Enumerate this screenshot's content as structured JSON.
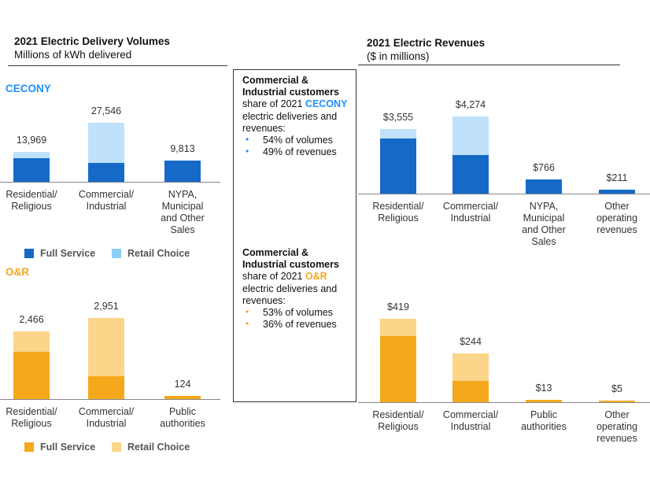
{
  "left_header": {
    "title": "2021 Electric Delivery Volumes",
    "subtitle": "Millions of kWh delivered"
  },
  "right_header": {
    "title": "2021 Electric Revenues",
    "subtitle": "($ in millions)"
  },
  "companies": {
    "cecony": "CECONY",
    "or": "O&R"
  },
  "colors": {
    "cecony_full": "#1569c7",
    "cecony_retail": "#bfe1fb",
    "cecony_retail_legend": "#8ecdf8",
    "cecony_label": "#1e90ff",
    "or_full": "#f5a81c",
    "or_retail": "#fbd58a",
    "or_label": "#f5a623"
  },
  "notes": {
    "cecony": {
      "line1": "Commercial &",
      "line2": "Industrial customers",
      "line3_prefix": "share of 2021 ",
      "company": "CECONY",
      "line4": "electric deliveries and",
      "line5": "revenues:",
      "bullets": [
        "54% of volumes",
        "49% of revenues"
      ]
    },
    "or": {
      "line1": "Commercial &",
      "line2": "Industrial customers",
      "line3_prefix": "share of 2021 ",
      "company": "O&R",
      "line4": "electric deliveries and",
      "line5": "revenues:",
      "bullets": [
        "53% of volumes",
        "36% of revenues"
      ]
    }
  },
  "legend": {
    "full": "Full Service",
    "retail": "Retail Choice"
  },
  "chart_data": [
    {
      "type": "bar",
      "stacked": true,
      "title": "2021 Electric Delivery Volumes",
      "subtitle": "Millions of kWh delivered",
      "company": "CECONY",
      "categories": [
        "Residential/\nReligious",
        "Commercial/\nIndustrial",
        "NYPA,\nMunicipal\nand Other\nSales"
      ],
      "totals": [
        "13,969",
        "27,546",
        "9,813"
      ],
      "series": [
        {
          "name": "Full Service",
          "values": [
            11000,
            8800,
            9813
          ]
        },
        {
          "name": "Retail Choice",
          "values": [
            2969,
            18746,
            0
          ]
        }
      ],
      "ylim": [
        0,
        27546
      ]
    },
    {
      "type": "bar",
      "stacked": true,
      "title": "2021 Electric Revenues",
      "subtitle": "($ in millions)",
      "company": "CECONY",
      "categories": [
        "Residential/\nReligious",
        "Commercial/\nIndustrial",
        "NYPA,\nMunicipal\nand Other\nSales",
        "Other\noperating\nrevenues"
      ],
      "totals": [
        "$3,555",
        "$4,274",
        "$766",
        "$211"
      ],
      "series": [
        {
          "name": "Full Service",
          "values": [
            3050,
            2140,
            766,
            211
          ]
        },
        {
          "name": "Retail Choice",
          "values": [
            505,
            2134,
            0,
            0
          ]
        }
      ],
      "ylim": [
        0,
        4274
      ]
    },
    {
      "type": "bar",
      "stacked": true,
      "title": "2021 Electric Delivery Volumes",
      "company": "O&R",
      "categories": [
        "Residential/\nReligious",
        "Commercial/\nIndustrial",
        "Public\nauthorities"
      ],
      "totals": [
        "2,466",
        "2,951",
        "124"
      ],
      "series": [
        {
          "name": "Full Service",
          "values": [
            1720,
            830,
            124
          ]
        },
        {
          "name": "Retail Choice",
          "values": [
            746,
            2121,
            0
          ]
        }
      ],
      "ylim": [
        0,
        2951
      ]
    },
    {
      "type": "bar",
      "stacked": true,
      "title": "2021 Electric Revenues",
      "company": "O&R",
      "categories": [
        "Residential/\nReligious",
        "Commercial/\nIndustrial",
        "Public\nauthorities",
        "Other\noperating\nrevenues"
      ],
      "totals": [
        "$419",
        "$244",
        "$13",
        "$5"
      ],
      "series": [
        {
          "name": "Full Service",
          "values": [
            332,
            108,
            13,
            5
          ]
        },
        {
          "name": "Retail Choice",
          "values": [
            87,
            136,
            0,
            0
          ]
        }
      ],
      "ylim": [
        0,
        419
      ]
    }
  ]
}
